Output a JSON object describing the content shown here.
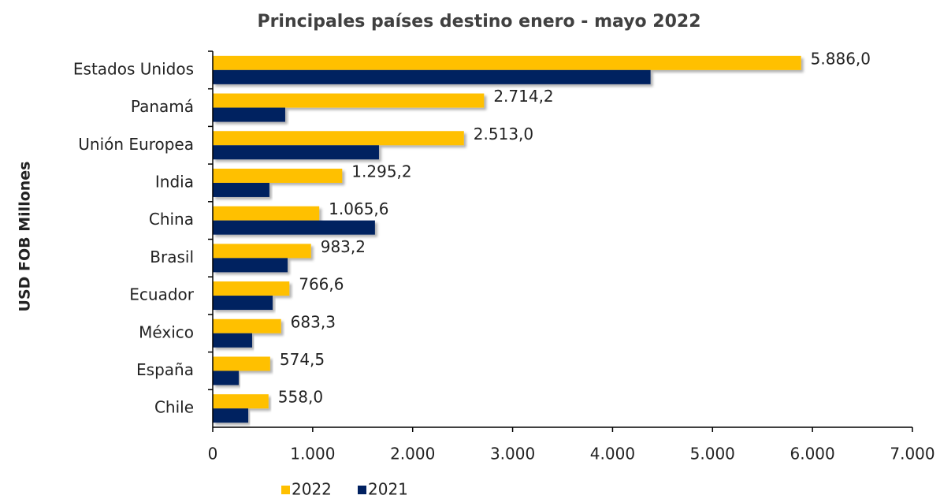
{
  "chart_data": {
    "type": "bar",
    "orientation": "horizontal",
    "title": "Principales países destino enero - mayo 2022",
    "y_label": "USD FOB Millones",
    "categories": [
      "Estados Unidos",
      "Panamá",
      "Unión Europea",
      "India",
      "China",
      "Brasil",
      "Ecuador",
      "México",
      "España",
      "Chile"
    ],
    "series": [
      {
        "name": "2022",
        "color": "#ffc000",
        "values": [
          5886.0,
          2714.2,
          2513.0,
          1295.2,
          1065.6,
          983.2,
          766.6,
          683.3,
          574.5,
          558.0
        ],
        "value_labels": [
          "5.886,0",
          "2.714,2",
          "2.513,0",
          "1.295,2",
          "1.065,6",
          "983,2",
          "766,6",
          "683,3",
          "574,5",
          "558,0"
        ]
      },
      {
        "name": "2021",
        "color": "#002060",
        "values": [
          4380,
          725,
          1663,
          567,
          1623,
          749,
          599,
          394,
          260,
          355
        ]
      }
    ],
    "xlim": [
      0,
      7000
    ],
    "xticks": [
      0,
      {
        "value": 1000,
        "label": "1.000"
      },
      {
        "value": 2000,
        "label": "2.000"
      },
      {
        "value": 3000,
        "label": "3.000"
      },
      {
        "value": 4000,
        "label": "4.000"
      },
      {
        "value": 5000,
        "label": "5.000"
      },
      {
        "value": 6000,
        "label": "6.000"
      },
      {
        "value": 7000,
        "label": "7.000"
      }
    ],
    "legend": "bottom"
  }
}
